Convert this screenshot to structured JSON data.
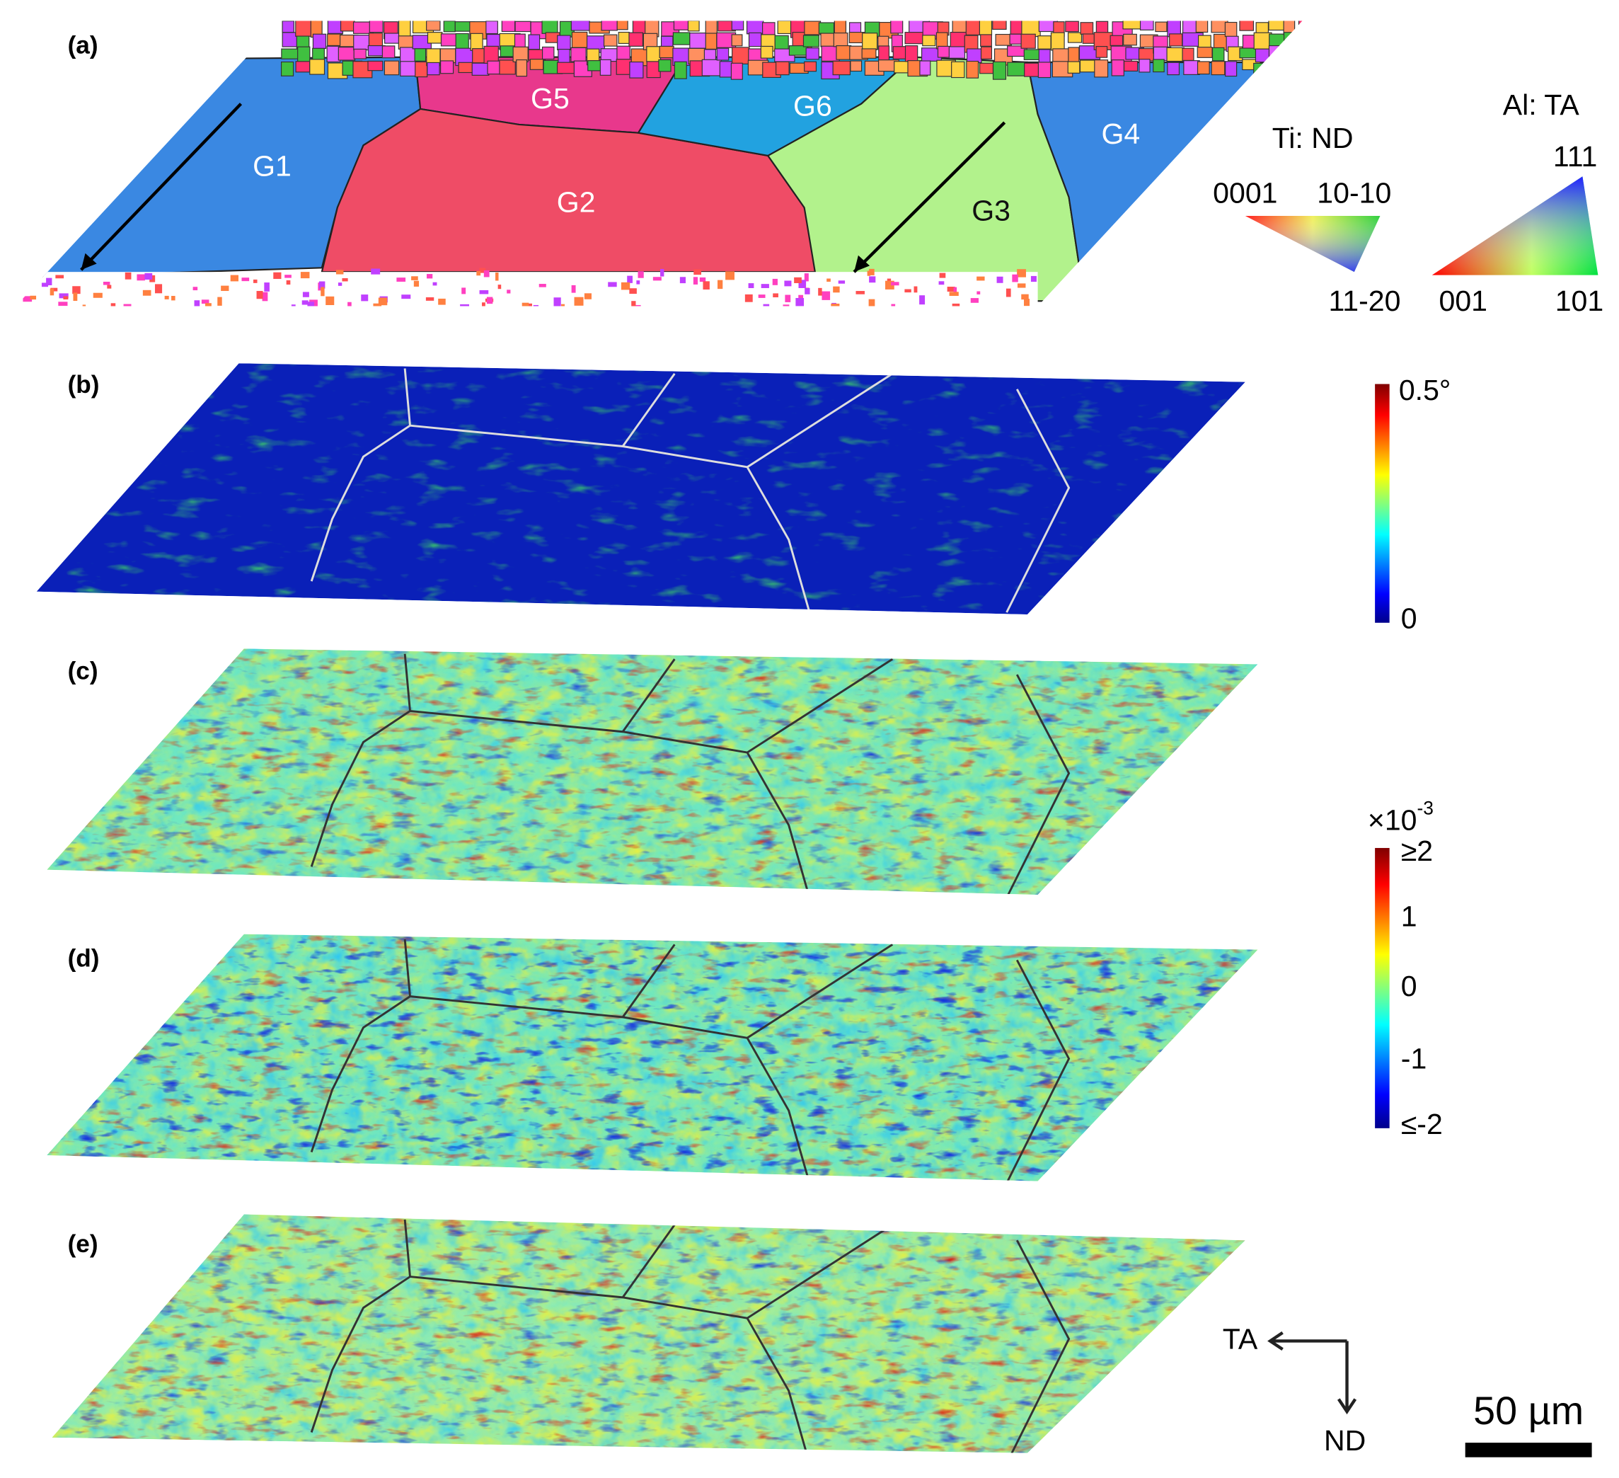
{
  "panels": [
    "(a)",
    "(b)",
    "(c)",
    "(d)",
    "(e)"
  ],
  "grains": [
    "G1",
    "G2",
    "G3",
    "G4",
    "G5",
    "G6"
  ],
  "ipf_legends": [
    {
      "title": "Ti: ND",
      "corners": [
        "0001",
        "10-10",
        "11-20"
      ]
    },
    {
      "title": "Al: TA",
      "corners": [
        "111",
        "001",
        "101"
      ]
    }
  ],
  "colorbars": [
    {
      "ticks": [
        "0.5°",
        "0"
      ]
    },
    {
      "multiplier": "×10",
      "exponent": "-3",
      "ticks": [
        "≥2",
        "1",
        "0",
        "-1",
        "≤-2"
      ]
    }
  ],
  "directions": {
    "horizontal": "TA",
    "vertical": "ND"
  },
  "scale_bar": "50 µm"
}
